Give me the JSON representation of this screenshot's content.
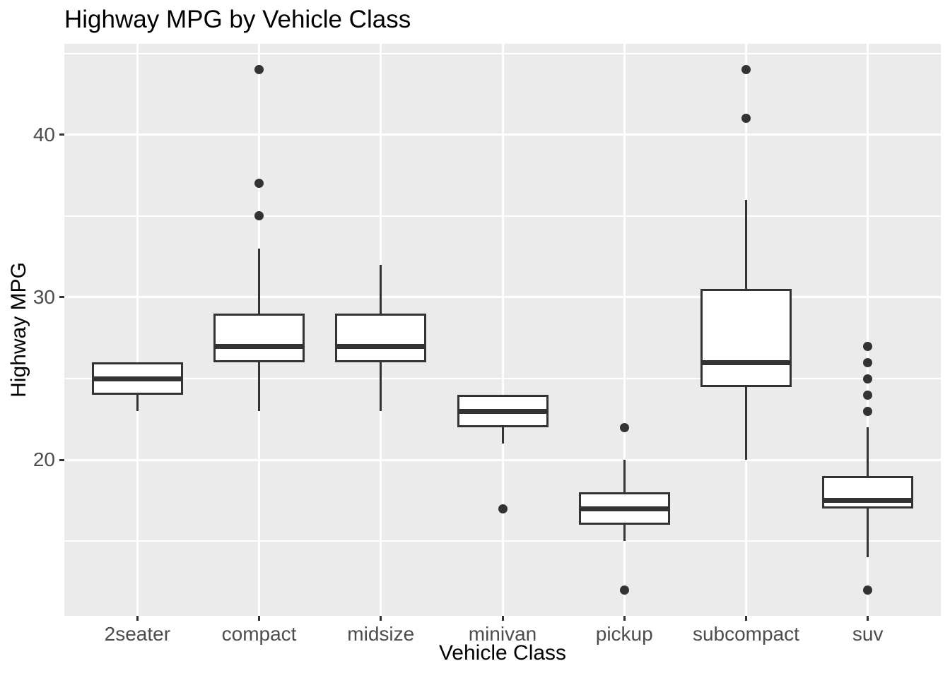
{
  "chart_data": {
    "type": "boxplot",
    "title": "Highway MPG by Vehicle Class",
    "xlabel": "Vehicle Class",
    "ylabel": "Highway MPG",
    "categories": [
      "2seater",
      "compact",
      "midsize",
      "minivan",
      "pickup",
      "subcompact",
      "suv"
    ],
    "ylim": [
      10.4,
      45.6
    ],
    "y_major_ticks": [
      20,
      30,
      40
    ],
    "y_minor_gridlines": [
      15,
      25,
      35,
      45
    ],
    "grid": "major-and-minor-white-on-gray",
    "legend": "none",
    "boxes": [
      {
        "category": "2seater",
        "whisker_low": 23,
        "q1": 24,
        "median": 25,
        "q3": 26,
        "whisker_high": 26,
        "outliers": []
      },
      {
        "category": "compact",
        "whisker_low": 23,
        "q1": 26,
        "median": 27,
        "q3": 29,
        "whisker_high": 33,
        "outliers": [
          35,
          37,
          44
        ]
      },
      {
        "category": "midsize",
        "whisker_low": 23,
        "q1": 26,
        "median": 27,
        "q3": 29,
        "whisker_high": 32,
        "outliers": []
      },
      {
        "category": "minivan",
        "whisker_low": 21,
        "q1": 22,
        "median": 23,
        "q3": 24,
        "whisker_high": 24,
        "outliers": [
          17
        ]
      },
      {
        "category": "pickup",
        "whisker_low": 15,
        "q1": 16,
        "median": 17,
        "q3": 18,
        "whisker_high": 20,
        "outliers": [
          22,
          12
        ]
      },
      {
        "category": "subcompact",
        "whisker_low": 20,
        "q1": 24.5,
        "median": 26,
        "q3": 30.5,
        "whisker_high": 36,
        "outliers": [
          44,
          41
        ]
      },
      {
        "category": "suv",
        "whisker_low": 14,
        "q1": 17,
        "median": 17.5,
        "q3": 19,
        "whisker_high": 22,
        "outliers": [
          27,
          26,
          25,
          24,
          23,
          12
        ]
      }
    ],
    "colors": {
      "panel_background": "#EBEBEB",
      "gridline": "#FFFFFF",
      "box_stroke": "#333333",
      "box_fill": "#FFFFFF",
      "outlier_dot": "#333333",
      "tick_label": "#4D4D4D",
      "axis_title": "#000000",
      "title": "#000000"
    }
  }
}
